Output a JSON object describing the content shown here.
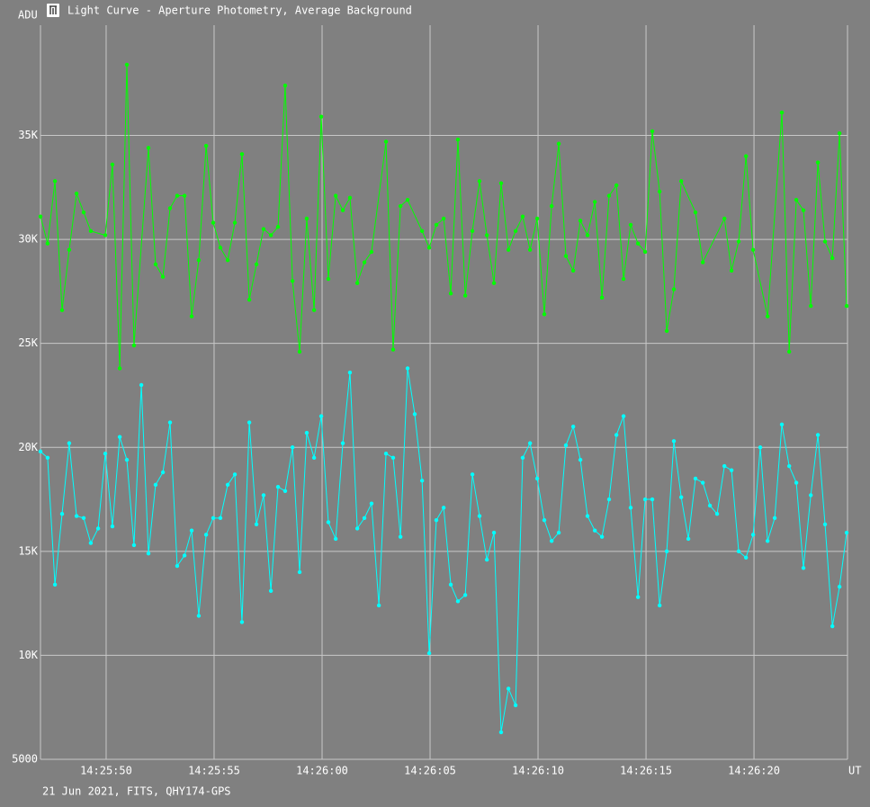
{
  "chart_data": {
    "type": "line",
    "title": "Light Curve - Aperture Photometry, Average Background",
    "y_label": "ADU",
    "x_label": "UT",
    "footer": "21 Jun 2021, FITS, QHY174-GPS",
    "grid": true,
    "xlim": [
      51946.96,
      51984.33
    ],
    "xticks": [
      {
        "value": 51950,
        "label": "14:25:50"
      },
      {
        "value": 51955,
        "label": "14:25:55"
      },
      {
        "value": 51960,
        "label": "14:26:00"
      },
      {
        "value": 51965,
        "label": "14:26:05"
      },
      {
        "value": 51970,
        "label": "14:26:10"
      },
      {
        "value": 51975,
        "label": "14:26:15"
      },
      {
        "value": 51980,
        "label": "14:26:20"
      }
    ],
    "ylim": [
      5000,
      40300
    ],
    "yticks": [
      5000,
      {
        "value": 10000,
        "label": "10K"
      },
      {
        "value": 15000,
        "label": "15K"
      },
      {
        "value": 20000,
        "label": "20K"
      },
      {
        "value": 25000,
        "label": "25K"
      },
      {
        "value": 30000,
        "label": "30K"
      },
      {
        "value": 35000,
        "label": "35K"
      }
    ],
    "series": [
      {
        "color": "#00ff00",
        "x": [
          51946.96,
          51947.29,
          51947.63,
          51947.96,
          51948.29,
          51948.63,
          51948.96,
          51949.29,
          51949.96,
          51950.29,
          51950.63,
          51950.96,
          51951.29,
          51951.96,
          51952.29,
          51952.63,
          51952.96,
          51953.29,
          51953.63,
          51953.96,
          51954.29,
          51954.63,
          51954.96,
          51955.29,
          51955.63,
          51955.96,
          51956.29,
          51956.63,
          51956.96,
          51957.29,
          51957.63,
          51957.96,
          51958.29,
          51958.63,
          51958.96,
          51959.29,
          51959.63,
          51959.96,
          51960.29,
          51960.63,
          51960.96,
          51961.29,
          51961.63,
          51961.96,
          51962.29,
          51962.96,
          51963.29,
          51963.63,
          51963.96,
          51964.63,
          51964.96,
          51965.29,
          51965.63,
          51965.96,
          51966.29,
          51966.63,
          51966.96,
          51967.29,
          51967.63,
          51967.96,
          51968.29,
          51968.63,
          51968.96,
          51969.29,
          51969.63,
          51969.96,
          51970.29,
          51970.63,
          51970.96,
          51971.29,
          51971.63,
          51971.96,
          51972.29,
          51972.63,
          51972.96,
          51973.29,
          51973.63,
          51973.96,
          51974.29,
          51974.63,
          51974.96,
          51975.29,
          51975.63,
          51975.96,
          51976.29,
          51976.63,
          51977.29,
          51977.63,
          51978.63,
          51978.96,
          51979.29,
          51979.63,
          51979.96,
          51980.63,
          51981.29,
          51981.63,
          51981.96,
          51982.29,
          51982.63,
          51982.96,
          51983.29,
          51983.63,
          51983.96,
          51984.29
        ],
        "values": [
          31100,
          29800,
          32800,
          26600,
          29500,
          32200,
          31300,
          30400,
          30200,
          33600,
          23800,
          38400,
          24900,
          34400,
          28800,
          28200,
          31500,
          32100,
          32100,
          26300,
          29000,
          34500,
          30800,
          29600,
          29000,
          30800,
          34100,
          27100,
          28800,
          30500,
          30200,
          30600,
          37400,
          28000,
          24600,
          31000,
          26600,
          35900,
          28100,
          32100,
          31400,
          32000,
          27900,
          28900,
          29400,
          34700,
          24700,
          31600,
          31900,
          30400,
          29600,
          30700,
          31000,
          27400,
          34800,
          27300,
          30400,
          32800,
          30200,
          27900,
          32700,
          29500,
          30400,
          31100,
          29500,
          31000,
          26400,
          31600,
          34600,
          29200,
          28500,
          30900,
          30200,
          31800,
          27200,
          32100,
          32600,
          28100,
          30700,
          29800,
          29400,
          35200,
          32300,
          25600,
          27600,
          32800,
          31300,
          28900,
          31000,
          28500,
          29900,
          34000,
          29500,
          26300,
          36100,
          24600,
          31900,
          31400,
          26800,
          33700,
          29900,
          29100,
          35100,
          26800
        ]
      },
      {
        "color": "#00ffff",
        "x": [
          51946.96,
          51947.29,
          51947.63,
          51947.96,
          51948.29,
          51948.63,
          51948.96,
          51949.29,
          51949.63,
          51949.96,
          51950.29,
          51950.63,
          51950.96,
          51951.29,
          51951.63,
          51951.96,
          51952.29,
          51952.63,
          51952.96,
          51953.29,
          51953.63,
          51953.96,
          51954.29,
          51954.63,
          51954.96,
          51955.29,
          51955.63,
          51955.96,
          51956.29,
          51956.63,
          51956.96,
          51957.29,
          51957.63,
          51957.96,
          51958.29,
          51958.63,
          51958.96,
          51959.29,
          51959.63,
          51959.96,
          51960.29,
          51960.63,
          51960.96,
          51961.29,
          51961.63,
          51961.96,
          51962.29,
          51962.63,
          51962.96,
          51963.29,
          51963.63,
          51963.96,
          51964.29,
          51964.63,
          51964.96,
          51965.29,
          51965.63,
          51965.96,
          51966.29,
          51966.63,
          51966.96,
          51967.29,
          51967.63,
          51967.96,
          51968.29,
          51968.63,
          51968.96,
          51969.29,
          51969.63,
          51969.96,
          51970.29,
          51970.63,
          51970.96,
          51971.29,
          51971.63,
          51971.96,
          51972.29,
          51972.63,
          51972.96,
          51973.29,
          51973.63,
          51973.96,
          51974.29,
          51974.63,
          51974.96,
          51975.29,
          51975.63,
          51975.96,
          51976.29,
          51976.63,
          51976.96,
          51977.29,
          51977.63,
          51977.96,
          51978.29,
          51978.63,
          51978.96,
          51979.29,
          51979.63,
          51979.96,
          51980.29,
          51980.63,
          51980.96,
          51981.29,
          51981.63,
          51981.96,
          51982.29,
          51982.63,
          51982.96,
          51983.29,
          51983.63,
          51983.96,
          51984.29
        ],
        "values": [
          19800,
          19500,
          13400,
          16800,
          20200,
          16700,
          16600,
          15400,
          16100,
          19700,
          16200,
          20500,
          19400,
          15300,
          23000,
          14900,
          18200,
          18800,
          21200,
          14300,
          14800,
          16000,
          11900,
          15800,
          16600,
          16600,
          18200,
          18700,
          11600,
          21200,
          16300,
          17700,
          13100,
          18100,
          17900,
          20000,
          14000,
          20700,
          19500,
          21500,
          16400,
          15600,
          20200,
          23600,
          16100,
          16600,
          17300,
          12400,
          19700,
          19500,
          15700,
          23800,
          21600,
          18400,
          10100,
          16500,
          17100,
          13400,
          12600,
          12900,
          18700,
          16700,
          14600,
          15900,
          6300,
          8400,
          7600,
          19500,
          20200,
          18500,
          16500,
          15500,
          15900,
          20100,
          21000,
          19400,
          16700,
          16000,
          15700,
          17500,
          20600,
          21500,
          17100,
          12800,
          17500,
          17500,
          12400,
          15000,
          20300,
          17600,
          15600,
          18500,
          18300,
          17200,
          16800,
          19100,
          18900,
          15000,
          14700,
          15800,
          20000,
          15500,
          16600,
          21100,
          19100,
          18300,
          14200,
          17700,
          20600,
          16300,
          11400,
          13300,
          15900
        ]
      }
    ]
  }
}
